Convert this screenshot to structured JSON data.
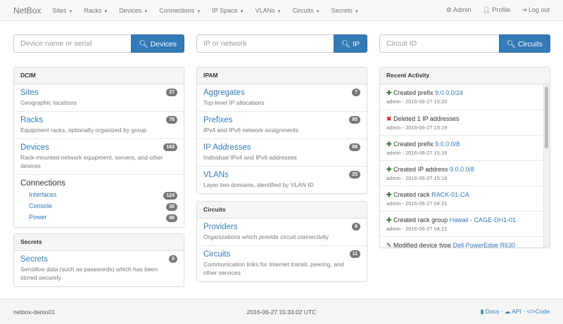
{
  "nav": {
    "brand": "NetBox",
    "menus": [
      "Sites",
      "Racks",
      "Devices",
      "Connections",
      "IP Space",
      "VLANs",
      "Circuits",
      "Secrets"
    ],
    "admin": "Admin",
    "profile": "Profile",
    "logout": "Log out"
  },
  "search": {
    "device": {
      "placeholder": "Device name or serial",
      "button": "Devices"
    },
    "ip": {
      "placeholder": "IP or network",
      "button": "IP"
    },
    "circuit": {
      "placeholder": "Circuit ID",
      "button": "Circuits"
    }
  },
  "dcim": {
    "title": "DCIM",
    "items": [
      {
        "label": "Sites",
        "desc": "Geographic locations",
        "count": "27"
      },
      {
        "label": "Racks",
        "desc": "Equipment racks, optionally organized by group",
        "count": "78"
      },
      {
        "label": "Devices",
        "desc": "Rack-mounted network equipment, servers, and other devices",
        "count": "163"
      }
    ],
    "connections": {
      "label": "Connections",
      "items": [
        {
          "label": "Interfaces",
          "count": "124"
        },
        {
          "label": "Console",
          "count": "30"
        },
        {
          "label": "Power",
          "count": "86"
        }
      ]
    }
  },
  "secrets": {
    "title": "Secrets",
    "items": [
      {
        "label": "Secrets",
        "desc": "Sensitive data (such as passwords) which has been stored securely",
        "count": "0"
      }
    ]
  },
  "ipam": {
    "title": "IPAM",
    "items": [
      {
        "label": "Aggregates",
        "desc": "Top-level IP allocations",
        "count": "7"
      },
      {
        "label": "Prefixes",
        "desc": "IPv4 and IPv6 network assignments",
        "count": "95"
      },
      {
        "label": "IP Addresses",
        "desc": "Individual IPv4 and IPv6 addresses",
        "count": "88"
      },
      {
        "label": "VLANs",
        "desc": "Layer two domains, identified by VLAN ID",
        "count": "25"
      }
    ]
  },
  "circuits": {
    "title": "Circuits",
    "items": [
      {
        "label": "Providers",
        "desc": "Organizations which provide circuit connectivity",
        "count": "6"
      },
      {
        "label": "Circuits",
        "desc": "Communication links for Internet transit, peering, and other services",
        "count": "11"
      }
    ]
  },
  "activity": {
    "title": "Recent Activity",
    "items": [
      {
        "icon": "plus",
        "action": "Created prefix",
        "link": "9.0.0.0/24",
        "meta": "admin - 2016-06-27 15:20"
      },
      {
        "icon": "x",
        "action": "Deleted 1 IP addresses",
        "link": "",
        "meta": "admin - 2016-06-27 15:19"
      },
      {
        "icon": "plus",
        "action": "Created prefix",
        "link": "9.0.0.0/8",
        "meta": "admin - 2016-06-27 15:19"
      },
      {
        "icon": "plus",
        "action": "Created IP address",
        "link": "9.0.0.0/8",
        "meta": "admin - 2016-06-27 15:18"
      },
      {
        "icon": "plus",
        "action": "Created rack",
        "link": "RACK-01-CA",
        "meta": "admin - 2016-06-27 04:21"
      },
      {
        "icon": "plus",
        "action": "Created rack group",
        "link": "Hawaii - CAGE-DH1-01",
        "meta": "admin - 2016-06-27 04:21"
      },
      {
        "icon": "pencil",
        "action": "Modified device type",
        "link": "Dell PowerEdge R630",
        "meta": ""
      }
    ]
  },
  "footer": {
    "hostname": "netbox-demo01",
    "time": "2016-06-27 15:33:02 UTC",
    "docs": "Docs",
    "api": "API",
    "code": "Code"
  }
}
